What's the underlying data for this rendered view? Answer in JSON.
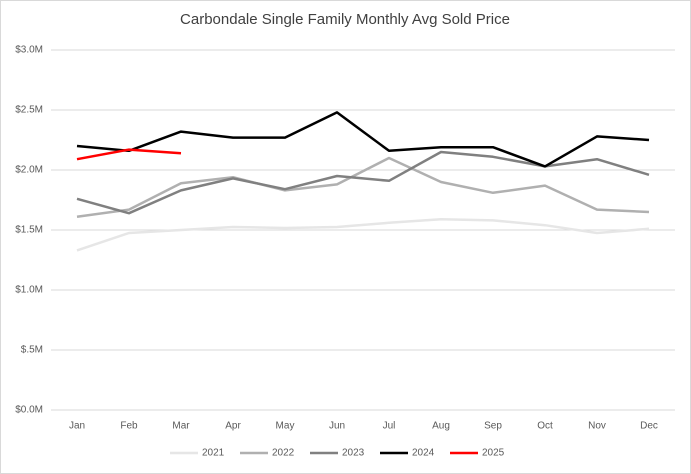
{
  "chart_data": {
    "type": "line",
    "title": "Carbondale Single Family Monthly Avg Sold Price",
    "categories": [
      "Jan",
      "Feb",
      "Mar",
      "Apr",
      "May",
      "Jun",
      "Jul",
      "Aug",
      "Sep",
      "Oct",
      "Nov",
      "Dec"
    ],
    "ylim": [
      0,
      3.0
    ],
    "yticks": [
      {
        "value": 0,
        "label": "$0.0M"
      },
      {
        "value": 0.5,
        "label": "$.5M"
      },
      {
        "value": 1.0,
        "label": "$1.0M"
      },
      {
        "value": 1.5,
        "label": "$1.5M"
      },
      {
        "value": 2.0,
        "label": "$2.0M"
      },
      {
        "value": 2.5,
        "label": "$2.5M"
      },
      {
        "value": 3.0,
        "label": "$3.0M"
      }
    ],
    "grid": true,
    "legend": "bottom",
    "series": [
      {
        "name": "2021",
        "color": "#e6e6e6",
        "values": [
          1.33,
          1.475,
          1.5,
          1.525,
          1.517,
          1.525,
          1.56,
          1.59,
          1.58,
          1.54,
          1.475,
          1.51
        ]
      },
      {
        "name": "2022",
        "color": "#b0b0b0",
        "values": [
          1.61,
          1.67,
          1.89,
          1.94,
          1.83,
          1.88,
          2.1,
          1.9,
          1.81,
          1.87,
          1.67,
          1.65
        ]
      },
      {
        "name": "2023",
        "color": "#808080",
        "values": [
          1.76,
          1.64,
          1.83,
          1.93,
          1.84,
          1.95,
          1.91,
          2.15,
          2.11,
          2.03,
          2.09,
          1.96
        ]
      },
      {
        "name": "2024",
        "color": "#000000",
        "values": [
          2.2,
          2.16,
          2.32,
          2.27,
          2.27,
          2.48,
          2.16,
          2.19,
          2.19,
          2.03,
          2.28,
          2.25
        ]
      },
      {
        "name": "2025",
        "color": "#ff0000",
        "values": [
          2.09,
          2.17,
          2.14,
          null,
          null,
          null,
          null,
          null,
          null,
          null,
          null,
          null
        ]
      }
    ]
  }
}
